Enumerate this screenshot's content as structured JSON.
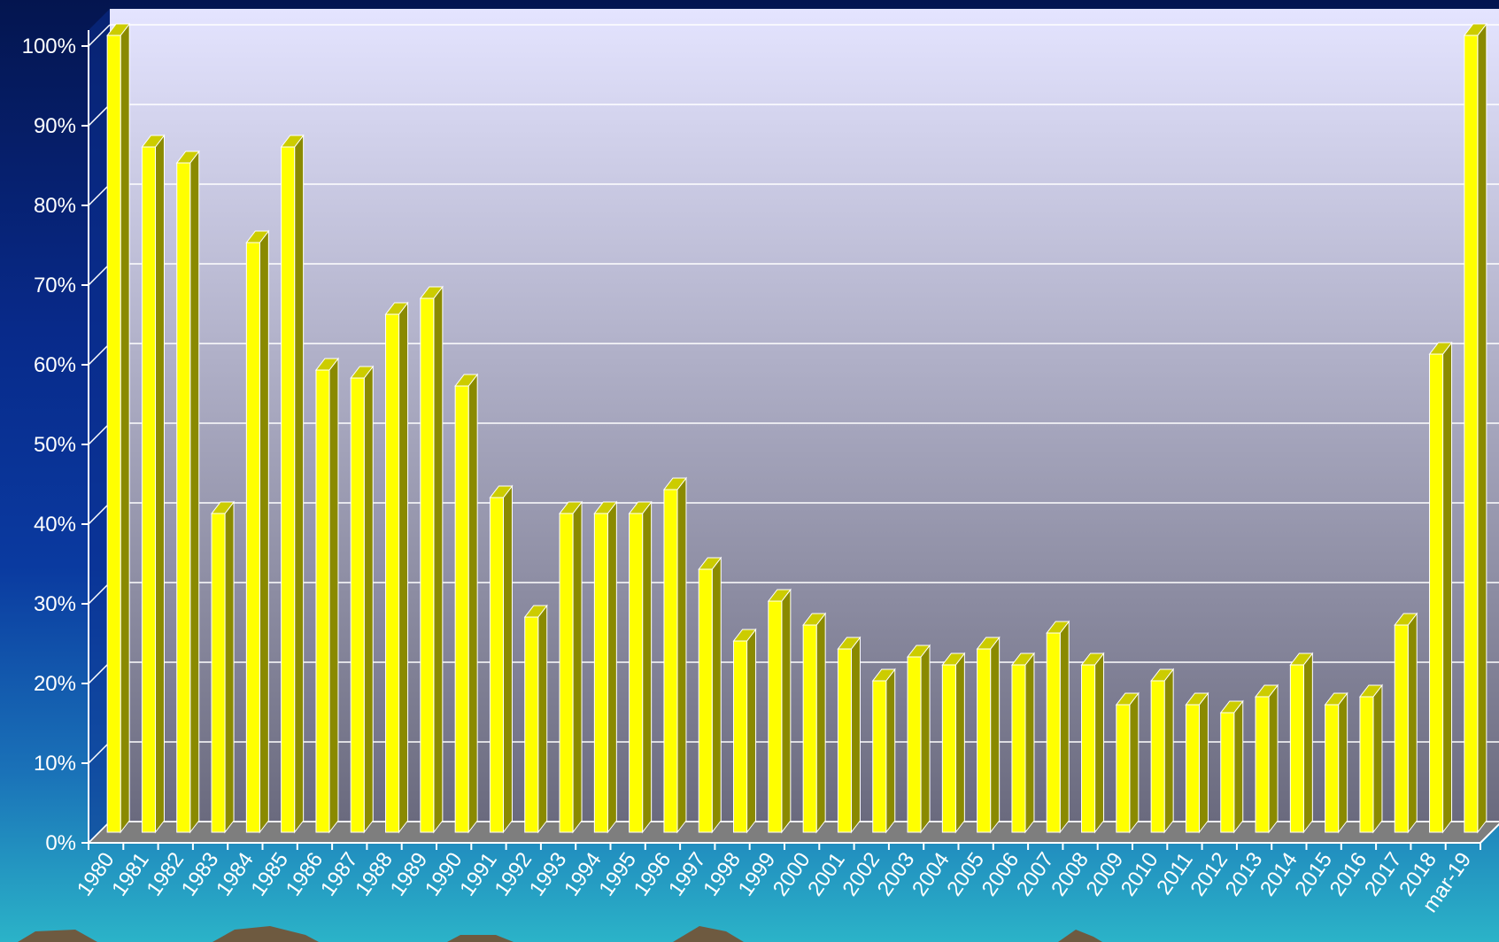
{
  "chart_data": {
    "type": "bar",
    "title": "",
    "xlabel": "",
    "ylabel": "",
    "ylim": [
      0,
      100
    ],
    "y_ticks": [
      "0%",
      "10%",
      "20%",
      "30%",
      "40%",
      "50%",
      "60%",
      "70%",
      "80%",
      "90%",
      "100%"
    ],
    "grid": true,
    "legend": "none",
    "categories": [
      "1980",
      "1981",
      "1982",
      "1983",
      "1984",
      "1985",
      "1986",
      "1987",
      "1988",
      "1989",
      "1990",
      "1991",
      "1992",
      "1993",
      "1994",
      "1995",
      "1996",
      "1997",
      "1998",
      "1999",
      "2000",
      "2001",
      "2002",
      "2003",
      "2004",
      "2005",
      "2006",
      "2007",
      "2008",
      "2009",
      "2010",
      "2011",
      "2012",
      "2013",
      "2014",
      "2015",
      "2016",
      "2017",
      "2018",
      "mar-19"
    ],
    "values": [
      100,
      86,
      84,
      40,
      74,
      86,
      58,
      57,
      65,
      67,
      56,
      42,
      27,
      40,
      40,
      40,
      43,
      33,
      24,
      29,
      26,
      23,
      19,
      22,
      21,
      23,
      21,
      25,
      21,
      16,
      19,
      16,
      15,
      17,
      21,
      16,
      17,
      26,
      60,
      100
    ],
    "colors": {
      "bar_front": "#ffff00",
      "bar_side": "#8a8a00",
      "bar_top": "#cccc00",
      "wall_top": "#e4e4ff",
      "wall_bottom": "#6a6a7e",
      "floor": "#7e7e7e",
      "text": "#ffffff"
    }
  }
}
